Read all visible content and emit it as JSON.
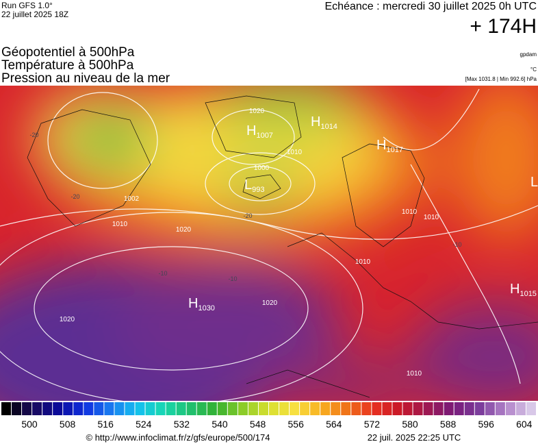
{
  "header": {
    "run": "Run GFS 1.0°",
    "run_date": "22 juillet 2025 18Z",
    "valid": "Echéance : mercredi 30 juillet 2025 0h UTC",
    "lead": "+ 174H"
  },
  "titles": [
    "Géopotentiel à 500hPa",
    "Température à 500hPa",
    "Pression au niveau de la mer"
  ],
  "units": {
    "height": "gpdam",
    "temperature": "°C",
    "pressure": "[Max 1031.8 | Min 992.6] hPa"
  },
  "centers": [
    {
      "letter": "H",
      "value": "1030"
    },
    {
      "letter": "H",
      "value": "1014"
    },
    {
      "letter": "H",
      "value": "1017"
    },
    {
      "letter": "H",
      "value": "1015"
    },
    {
      "letter": "H",
      "value": "1007"
    },
    {
      "letter": "L",
      "value": "993"
    },
    {
      "letter": "L",
      "value": ""
    }
  ],
  "isobar_labels": [
    "1002",
    "1010",
    "1020",
    "1000",
    "1010",
    "1020",
    "1020",
    "1010",
    "1010",
    "1020",
    "1010",
    "1010"
  ],
  "temperature_labels": [
    "-20",
    "-20",
    "-10",
    "-10",
    "-20",
    "-10"
  ],
  "colorbar": {
    "labels": [
      500,
      508,
      516,
      524,
      532,
      540,
      548,
      556,
      564,
      572,
      580,
      588,
      596,
      604
    ]
  },
  "footer": {
    "source": "© http://www.infoclimat.fr/z/gfs/europe/500/174",
    "timestamp": "22 juil. 2025 22:25 UTC"
  }
}
